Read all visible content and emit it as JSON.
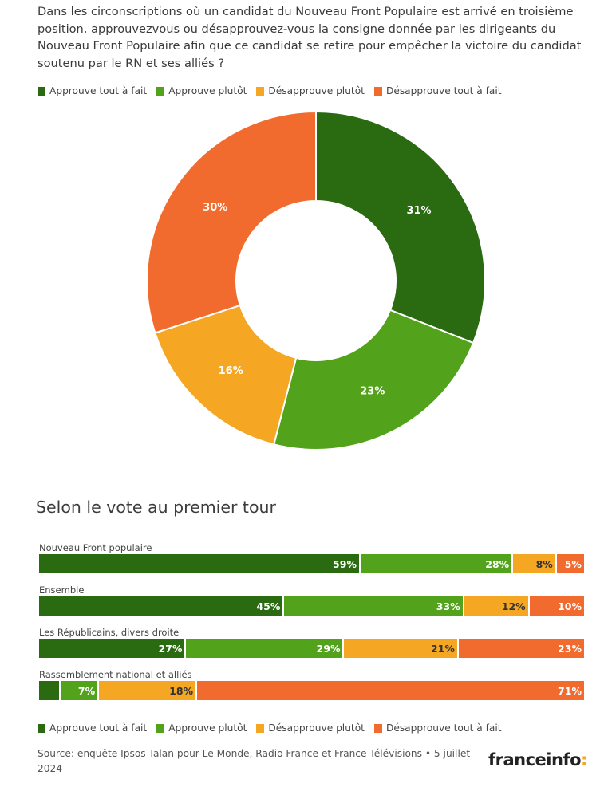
{
  "question": "Dans les circonscriptions où un candidat du Nouveau Front Populaire est arrivé en troisième position, approuvezvous ou désapprouvez-vous la consigne donnée par les dirigeants du Nouveau Front Populaire afin que ce candidat se retire pour empêcher la victoire du candidat soutenu par le RN et ses alliés ?",
  "legend": [
    {
      "label": "Approuve tout à fait",
      "color": "#2a6b12"
    },
    {
      "label": "Approuve plutôt",
      "color": "#52a31b"
    },
    {
      "label": "Désapprouve plutôt",
      "color": "#f5a623"
    },
    {
      "label": "Désapprouve tout à fait",
      "color": "#f26b2e"
    }
  ],
  "section_title": "Selon le vote au premier tour",
  "source": "Source: enquête Ipsos Talan pour Le Monde, Radio France et France Télévisions • 5 juillet 2024",
  "logo": {
    "text": "franceinfo",
    "colon": ":"
  },
  "chart_data": [
    {
      "type": "pie",
      "categories": [
        "Approuve tout à fait",
        "Approuve plutôt",
        "Désapprouve plutôt",
        "Désapprouve tout à fait"
      ],
      "values": [
        31,
        23,
        16,
        30
      ],
      "labels": [
        "31%",
        "23%",
        "16%",
        "30%"
      ],
      "colors": [
        "#2a6b12",
        "#52a31b",
        "#f5a623",
        "#f26b2e"
      ]
    },
    {
      "type": "bar",
      "orientation": "horizontal",
      "stacked": true,
      "categories": [
        "Nouveau Front populaire",
        "Ensemble",
        "Les Républicains, divers droite",
        "Rassemblement national et alliés"
      ],
      "xlim": [
        0,
        100
      ],
      "series": [
        {
          "name": "Approuve tout à fait",
          "values": [
            59,
            45,
            27,
            4
          ],
          "labels": [
            "59%",
            "45%",
            "27%",
            ""
          ],
          "color": "#2a6b12"
        },
        {
          "name": "Approuve plutôt",
          "values": [
            28,
            33,
            29,
            7
          ],
          "labels": [
            "28%",
            "33%",
            "29%",
            "7%"
          ],
          "color": "#52a31b"
        },
        {
          "name": "Désapprouve plutôt",
          "values": [
            8,
            12,
            21,
            18
          ],
          "labels": [
            "8%",
            "12%",
            "21%",
            "18%"
          ],
          "color": "#f5a623"
        },
        {
          "name": "Désapprouve tout à fait",
          "values": [
            5,
            10,
            23,
            71
          ],
          "labels": [
            "5%",
            "10%",
            "23%",
            "71%"
          ],
          "color": "#f26b2e"
        }
      ]
    }
  ]
}
